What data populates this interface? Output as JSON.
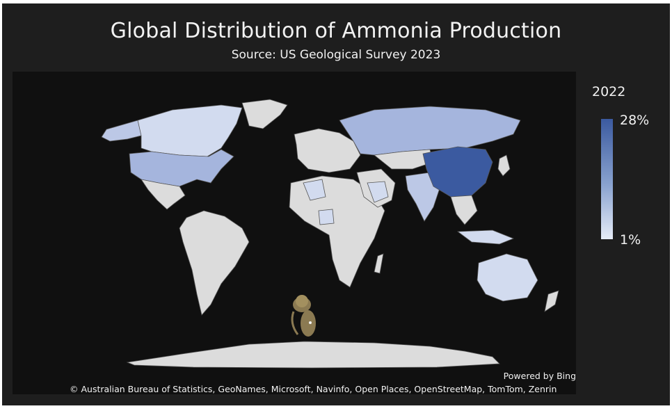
{
  "title": "Global Distribution of Ammonia Production",
  "subtitle": "Source: US Geological Survey 2023",
  "legend": {
    "year": "2022",
    "max_label": "28%",
    "min_label": "1%",
    "color_high": "#3b5aa0",
    "color_low": "#e6ecf7"
  },
  "attribution": {
    "powered": "Powered by Bing",
    "copyright": "© Australian Bureau of Statistics, GeoNames, Microsoft, Navinfo, Open Places, OpenStreetMap, TomTom, Zenrin"
  },
  "colors": {
    "no_data": "#dcdcdc",
    "ocean": "#101010",
    "background": "#1e1e1e"
  },
  "icons": [
    "map-pin-icon"
  ]
}
